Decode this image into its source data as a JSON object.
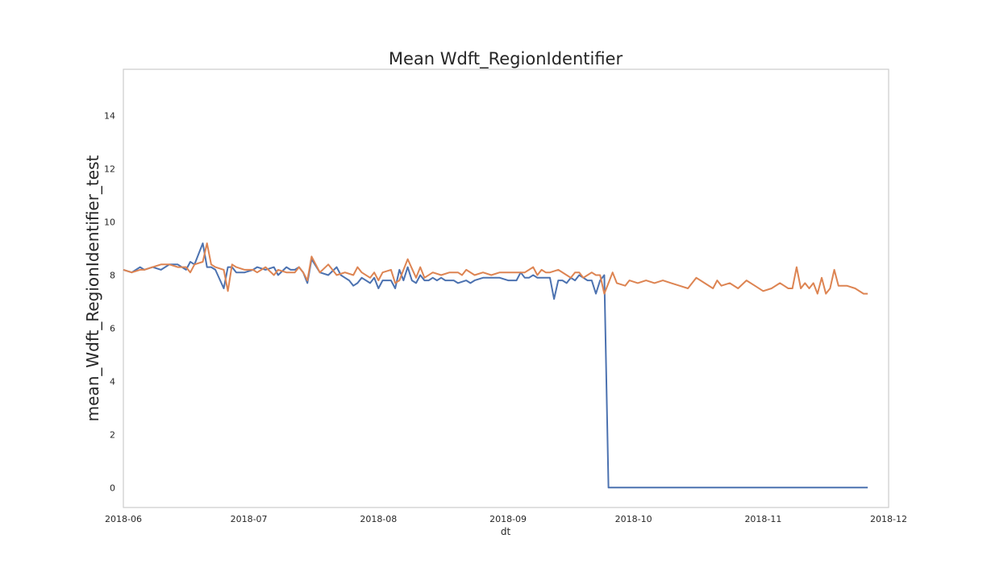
{
  "chart_data": {
    "type": "line",
    "title": "Mean Wdft_RegionIdentifier",
    "xlabel": "dt",
    "ylabel": "mean_Wdft_RegionIdentifier_test",
    "x_start": "2018-06-01",
    "x_ticks": [
      "2018-06",
      "2018-07",
      "2018-08",
      "2018-09",
      "2018-10",
      "2018-11",
      "2018-12"
    ],
    "xlim": [
      "2018-06-01",
      "2018-12-01"
    ],
    "y_ticks": [
      0,
      2,
      4,
      6,
      8,
      10,
      12,
      14
    ],
    "ylim": [
      -0.75,
      15.75
    ],
    "grid": false,
    "colors": {
      "blue": "#4c72b0",
      "orange": "#dd8452"
    },
    "series": [
      {
        "color": "#4c72b0",
        "x": [
          "2018-06-01",
          "2018-06-03",
          "2018-06-05",
          "2018-06-06",
          "2018-06-08",
          "2018-06-10",
          "2018-06-12",
          "2018-06-14",
          "2018-06-15",
          "2018-06-16",
          "2018-06-17",
          "2018-06-18",
          "2018-06-20",
          "2018-06-21",
          "2018-06-22",
          "2018-06-23",
          "2018-06-25",
          "2018-06-26",
          "2018-06-27",
          "2018-06-28",
          "2018-06-30",
          "2018-07-02",
          "2018-07-03",
          "2018-07-05",
          "2018-07-07",
          "2018-07-08",
          "2018-07-10",
          "2018-07-11",
          "2018-07-12",
          "2018-07-13",
          "2018-07-14",
          "2018-07-15",
          "2018-07-16",
          "2018-07-18",
          "2018-07-20",
          "2018-07-22",
          "2018-07-23",
          "2018-07-24",
          "2018-07-25",
          "2018-07-26",
          "2018-07-27",
          "2018-07-28",
          "2018-07-30",
          "2018-07-31",
          "2018-08-01",
          "2018-08-02",
          "2018-08-04",
          "2018-08-05",
          "2018-08-06",
          "2018-08-07",
          "2018-08-08",
          "2018-08-09",
          "2018-08-10",
          "2018-08-11",
          "2018-08-12",
          "2018-08-13",
          "2018-08-14",
          "2018-08-15",
          "2018-08-16",
          "2018-08-17",
          "2018-08-18",
          "2018-08-19",
          "2018-08-20",
          "2018-08-22",
          "2018-08-23",
          "2018-08-24",
          "2018-08-26",
          "2018-08-28",
          "2018-08-30",
          "2018-09-01",
          "2018-09-03",
          "2018-09-04",
          "2018-09-05",
          "2018-09-06",
          "2018-09-07",
          "2018-09-08",
          "2018-09-09",
          "2018-09-10",
          "2018-09-11",
          "2018-09-12",
          "2018-09-13",
          "2018-09-14",
          "2018-09-15",
          "2018-09-16",
          "2018-09-17",
          "2018-09-18",
          "2018-09-19",
          "2018-09-20",
          "2018-09-21",
          "2018-09-22",
          "2018-09-23",
          "2018-09-24",
          "2018-09-25",
          "2018-09-26",
          "2018-09-27",
          "2018-10-10",
          "2018-10-20",
          "2018-11-01",
          "2018-11-10",
          "2018-11-20",
          "2018-11-26"
        ],
        "values": [
          8.2,
          8.1,
          8.3,
          8.2,
          8.3,
          8.2,
          8.4,
          8.4,
          8.3,
          8.2,
          8.5,
          8.4,
          9.2,
          8.3,
          8.3,
          8.2,
          7.5,
          8.3,
          8.3,
          8.1,
          8.1,
          8.2,
          8.3,
          8.2,
          8.3,
          8.0,
          8.3,
          8.2,
          8.2,
          8.3,
          8.1,
          7.7,
          8.6,
          8.1,
          8.0,
          8.3,
          8.0,
          7.9,
          7.8,
          7.6,
          7.7,
          7.9,
          7.7,
          7.9,
          7.5,
          7.8,
          7.8,
          7.5,
          8.2,
          7.8,
          8.3,
          7.8,
          7.7,
          8.0,
          7.8,
          7.8,
          7.9,
          7.8,
          7.9,
          7.8,
          7.8,
          7.8,
          7.7,
          7.8,
          7.7,
          7.8,
          7.9,
          7.9,
          7.9,
          7.8,
          7.8,
          8.1,
          7.9,
          7.9,
          8.0,
          7.9,
          7.9,
          7.9,
          7.9,
          7.1,
          7.8,
          7.8,
          7.7,
          7.9,
          7.8,
          8.0,
          7.9,
          7.8,
          7.8,
          7.3,
          7.8,
          8.0,
          0.0,
          0.0,
          0.0,
          0.0,
          0.0,
          0.0,
          0.0,
          0.0,
          0.0
        ]
      },
      {
        "color": "#dd8452",
        "x": [
          "2018-06-01",
          "2018-06-03",
          "2018-06-05",
          "2018-06-06",
          "2018-06-08",
          "2018-06-10",
          "2018-06-12",
          "2018-06-14",
          "2018-06-16",
          "2018-06-17",
          "2018-06-18",
          "2018-06-20",
          "2018-06-21",
          "2018-06-22",
          "2018-06-23",
          "2018-06-25",
          "2018-06-26",
          "2018-06-27",
          "2018-06-28",
          "2018-06-30",
          "2018-07-02",
          "2018-07-03",
          "2018-07-05",
          "2018-07-07",
          "2018-07-08",
          "2018-07-10",
          "2018-07-12",
          "2018-07-13",
          "2018-07-14",
          "2018-07-15",
          "2018-07-16",
          "2018-07-18",
          "2018-07-20",
          "2018-07-22",
          "2018-07-24",
          "2018-07-26",
          "2018-07-27",
          "2018-07-28",
          "2018-07-30",
          "2018-07-31",
          "2018-08-01",
          "2018-08-02",
          "2018-08-04",
          "2018-08-05",
          "2018-08-06",
          "2018-08-07",
          "2018-08-08",
          "2018-08-10",
          "2018-08-11",
          "2018-08-12",
          "2018-08-14",
          "2018-08-16",
          "2018-08-18",
          "2018-08-20",
          "2018-08-21",
          "2018-08-22",
          "2018-08-24",
          "2018-08-26",
          "2018-08-28",
          "2018-08-30",
          "2018-09-01",
          "2018-09-03",
          "2018-09-05",
          "2018-09-07",
          "2018-09-08",
          "2018-09-09",
          "2018-09-10",
          "2018-09-11",
          "2018-09-13",
          "2018-09-15",
          "2018-09-16",
          "2018-09-17",
          "2018-09-18",
          "2018-09-19",
          "2018-09-20",
          "2018-09-21",
          "2018-09-22",
          "2018-09-23",
          "2018-09-24",
          "2018-09-25",
          "2018-09-26",
          "2018-09-27",
          "2018-09-29",
          "2018-09-30",
          "2018-10-02",
          "2018-10-04",
          "2018-10-06",
          "2018-10-08",
          "2018-10-10",
          "2018-10-12",
          "2018-10-14",
          "2018-10-16",
          "2018-10-18",
          "2018-10-20",
          "2018-10-21",
          "2018-10-22",
          "2018-10-24",
          "2018-10-26",
          "2018-10-28",
          "2018-10-30",
          "2018-11-01",
          "2018-11-03",
          "2018-11-05",
          "2018-11-06",
          "2018-11-07",
          "2018-11-08",
          "2018-11-09",
          "2018-11-10",
          "2018-11-11",
          "2018-11-12",
          "2018-11-13",
          "2018-11-14",
          "2018-11-15",
          "2018-11-16",
          "2018-11-17",
          "2018-11-18",
          "2018-11-19",
          "2018-11-21",
          "2018-11-23",
          "2018-11-25",
          "2018-11-26"
        ],
        "values": [
          8.2,
          8.1,
          8.2,
          8.2,
          8.3,
          8.4,
          8.4,
          8.3,
          8.3,
          8.1,
          8.4,
          8.5,
          9.2,
          8.4,
          8.3,
          8.2,
          7.4,
          8.4,
          8.3,
          8.2,
          8.2,
          8.1,
          8.3,
          8.0,
          8.2,
          8.1,
          8.1,
          8.3,
          8.1,
          7.8,
          8.7,
          8.1,
          8.4,
          8.0,
          8.1,
          8.0,
          8.3,
          8.1,
          7.9,
          8.1,
          7.8,
          8.1,
          8.2,
          7.7,
          7.8,
          8.2,
          8.6,
          7.9,
          8.3,
          7.9,
          8.1,
          8.0,
          8.1,
          8.1,
          8.0,
          8.2,
          8.0,
          8.1,
          8.0,
          8.1,
          8.1,
          8.1,
          8.1,
          8.3,
          8.0,
          8.2,
          8.1,
          8.1,
          8.2,
          8.0,
          7.9,
          8.1,
          8.1,
          7.9,
          8.0,
          8.1,
          8.0,
          8.0,
          7.3,
          7.7,
          8.1,
          7.7,
          7.6,
          7.8,
          7.7,
          7.8,
          7.7,
          7.8,
          7.7,
          7.6,
          7.5,
          7.9,
          7.7,
          7.5,
          7.8,
          7.6,
          7.7,
          7.5,
          7.8,
          7.6,
          7.4,
          7.5,
          7.7,
          7.6,
          7.5,
          7.5,
          8.3,
          7.5,
          7.7,
          7.5,
          7.7,
          7.3,
          7.9,
          7.3,
          7.5,
          8.2,
          7.6,
          7.6,
          7.5,
          7.3,
          7.3
        ]
      }
    ]
  }
}
